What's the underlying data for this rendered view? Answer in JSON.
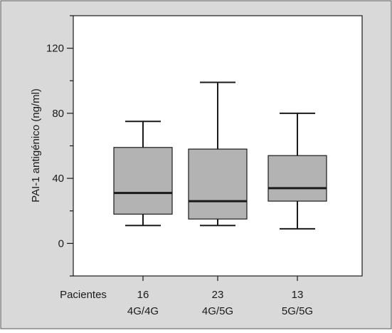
{
  "chart_data": {
    "type": "box",
    "ylabel": "PAI-1 antigénico (ng/ml)",
    "ylim": [
      -20,
      140
    ],
    "yticks": [
      0,
      40,
      80,
      120
    ],
    "grid": false,
    "row_label": "Pacientes",
    "categories": [
      {
        "n": "16",
        "genotype": "4G/4G",
        "whisker_low": 11,
        "q1": 18,
        "median": 31,
        "q3": 59,
        "whisker_high": 75
      },
      {
        "n": "23",
        "genotype": "4G/5G",
        "whisker_low": 11,
        "q1": 15,
        "median": 26,
        "q3": 58,
        "whisker_high": 99
      },
      {
        "n": "13",
        "genotype": "5G/5G",
        "whisker_low": 9,
        "q1": 26,
        "median": 34,
        "q3": 54,
        "whisker_high": 80
      }
    ],
    "colors": {
      "panel_bg": "#d9d9d9",
      "plot_bg": "#ffffff",
      "box_fill": "#b3b3b3",
      "ink": "#1a1a1a"
    }
  }
}
